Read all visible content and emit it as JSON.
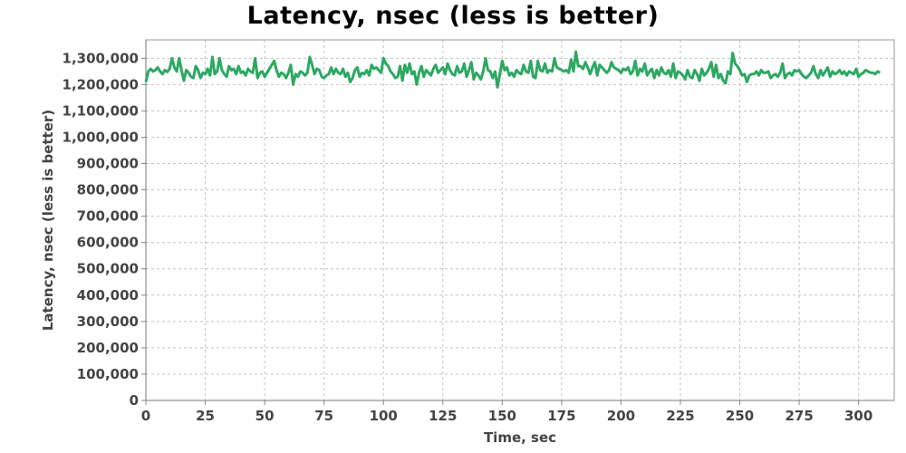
{
  "chart_data": {
    "type": "line",
    "title": "Latency, nsec (less is better)",
    "xlabel": "Time, sec",
    "ylabel": "Latency, nsec (less is better)",
    "xlim": [
      0,
      315
    ],
    "ylim": [
      0,
      1370000
    ],
    "x_ticks": [
      0,
      25,
      50,
      75,
      100,
      125,
      150,
      175,
      200,
      225,
      250,
      275,
      300
    ],
    "y_ticks": [
      0,
      100000,
      200000,
      300000,
      400000,
      500000,
      600000,
      700000,
      800000,
      900000,
      1000000,
      1100000,
      1200000,
      1300000
    ],
    "x_tick_labels": [
      "0",
      "25",
      "50",
      "75",
      "100",
      "125",
      "150",
      "175",
      "200",
      "225",
      "250",
      "275",
      "300"
    ],
    "y_tick_labels": [
      "0",
      "100,000",
      "200,000",
      "300,000",
      "400,000",
      "500,000",
      "600,000",
      "700,000",
      "800,000",
      "900,000",
      "1,000,000",
      "1,100,000",
      "1,200,000",
      "1,300,000"
    ],
    "grid": true,
    "line_color": "#2ca862",
    "series": [
      {
        "x_start": 0,
        "x_step": 1,
        "values": [
          1210000,
          1250000,
          1260000,
          1250000,
          1255000,
          1265000,
          1250000,
          1240000,
          1255000,
          1248000,
          1260000,
          1300000,
          1265000,
          1250000,
          1300000,
          1255000,
          1215000,
          1255000,
          1245000,
          1230000,
          1225000,
          1270000,
          1255000,
          1225000,
          1245000,
          1240000,
          1260000,
          1235000,
          1305000,
          1240000,
          1250000,
          1300000,
          1255000,
          1240000,
          1230000,
          1270000,
          1255000,
          1260000,
          1240000,
          1270000,
          1245000,
          1250000,
          1235000,
          1260000,
          1250000,
          1245000,
          1300000,
          1225000,
          1245000,
          1250000,
          1230000,
          1245000,
          1260000,
          1275000,
          1290000,
          1255000,
          1230000,
          1245000,
          1240000,
          1225000,
          1245000,
          1275000,
          1200000,
          1240000,
          1230000,
          1250000,
          1245000,
          1235000,
          1245000,
          1305000,
          1275000,
          1240000,
          1260000,
          1255000,
          1230000,
          1225000,
          1235000,
          1240000,
          1265000,
          1240000,
          1260000,
          1245000,
          1240000,
          1260000,
          1230000,
          1245000,
          1210000,
          1225000,
          1255000,
          1265000,
          1230000,
          1245000,
          1240000,
          1255000,
          1235000,
          1275000,
          1260000,
          1265000,
          1255000,
          1245000,
          1300000,
          1280000,
          1270000,
          1250000,
          1240000,
          1225000,
          1230000,
          1270000,
          1215000,
          1275000,
          1245000,
          1280000,
          1240000,
          1250000,
          1200000,
          1245000,
          1270000,
          1230000,
          1255000,
          1245000,
          1235000,
          1260000,
          1275000,
          1245000,
          1255000,
          1265000,
          1240000,
          1280000,
          1255000,
          1240000,
          1235000,
          1270000,
          1245000,
          1250000,
          1280000,
          1230000,
          1255000,
          1285000,
          1220000,
          1245000,
          1235000,
          1220000,
          1250000,
          1300000,
          1255000,
          1250000,
          1225000,
          1250000,
          1190000,
          1240000,
          1290000,
          1255000,
          1265000,
          1235000,
          1245000,
          1230000,
          1255000,
          1245000,
          1240000,
          1275000,
          1250000,
          1245000,
          1290000,
          1230000,
          1225000,
          1290000,
          1255000,
          1250000,
          1280000,
          1245000,
          1255000,
          1250000,
          1300000,
          1265000,
          1260000,
          1255000,
          1250000,
          1255000,
          1245000,
          1295000,
          1250000,
          1325000,
          1270000,
          1270000,
          1260000,
          1285000,
          1265000,
          1240000,
          1265000,
          1285000,
          1235000,
          1275000,
          1265000,
          1255000,
          1245000,
          1255000,
          1285000,
          1265000,
          1260000,
          1255000,
          1245000,
          1260000,
          1255000,
          1265000,
          1240000,
          1250000,
          1290000,
          1235000,
          1260000,
          1250000,
          1280000,
          1235000,
          1250000,
          1260000,
          1225000,
          1255000,
          1235000,
          1265000,
          1245000,
          1240000,
          1255000,
          1230000,
          1280000,
          1225000,
          1250000,
          1245000,
          1235000,
          1220000,
          1255000,
          1230000,
          1225000,
          1255000,
          1240000,
          1215000,
          1260000,
          1235000,
          1245000,
          1260000,
          1285000,
          1230000,
          1275000,
          1225000,
          1240000,
          1215000,
          1205000,
          1250000,
          1240000,
          1320000,
          1280000,
          1270000,
          1255000,
          1235000,
          1240000,
          1210000,
          1235000,
          1240000,
          1240000,
          1250000,
          1235000,
          1255000,
          1245000,
          1245000,
          1250000,
          1225000,
          1235000,
          1240000,
          1230000,
          1245000,
          1280000,
          1225000,
          1240000,
          1245000,
          1235000,
          1255000,
          1250000,
          1255000,
          1240000,
          1230000,
          1225000,
          1235000,
          1245000,
          1270000,
          1240000,
          1225000,
          1255000,
          1235000,
          1250000,
          1265000,
          1230000,
          1250000,
          1240000,
          1245000,
          1255000,
          1240000,
          1250000,
          1235000,
          1250000,
          1245000,
          1240000,
          1260000,
          1230000,
          1240000,
          1245000,
          1255000,
          1250000,
          1245000,
          1245000,
          1240000,
          1250000,
          1245000
        ]
      }
    ]
  }
}
